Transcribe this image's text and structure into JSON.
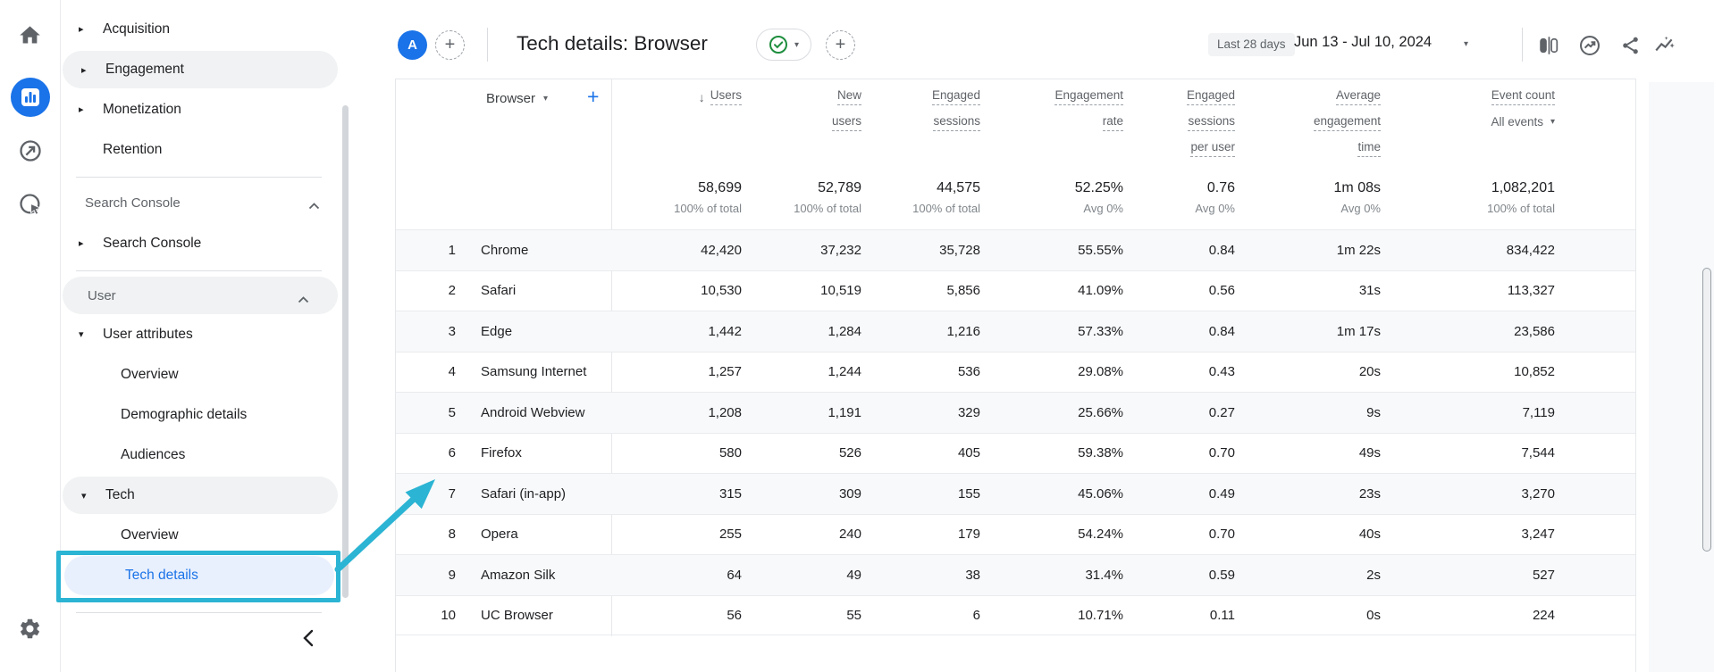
{
  "header": {
    "property_avatar": "A",
    "title": "Tech details: Browser",
    "date_preset": "Last 28 days",
    "date_range": "Jun 13 - Jul 10, 2024"
  },
  "sidebar": {
    "items": [
      {
        "label": "Acquisition"
      },
      {
        "label": "Engagement"
      },
      {
        "label": "Monetization"
      },
      {
        "label": "Retention"
      },
      {
        "label": "Search Console"
      },
      {
        "label": "Search Console"
      },
      {
        "label": "User"
      },
      {
        "label": "User attributes"
      },
      {
        "label": "Overview"
      },
      {
        "label": "Demographic details"
      },
      {
        "label": "Audiences"
      },
      {
        "label": "Tech"
      },
      {
        "label": "Overview"
      },
      {
        "label": "Tech details"
      }
    ]
  },
  "table": {
    "dimension_label": "Browser",
    "columns": [
      {
        "id": "users",
        "lines": [
          "Users"
        ],
        "sorted": true
      },
      {
        "id": "new-users",
        "lines": [
          "New",
          "users"
        ]
      },
      {
        "id": "engaged-sessions",
        "lines": [
          "Engaged",
          "sessions"
        ]
      },
      {
        "id": "engagement-rate",
        "lines": [
          "Engagement",
          "rate"
        ]
      },
      {
        "id": "engaged-sessions-per-user",
        "lines": [
          "Engaged",
          "sessions",
          "per user"
        ]
      },
      {
        "id": "average-engagement-time",
        "lines": [
          "Average",
          "engagement",
          "time"
        ]
      },
      {
        "id": "event-count",
        "lines": [
          "Event count"
        ],
        "subtitle": "All events"
      }
    ],
    "totals": {
      "values": [
        "58,699",
        "52,789",
        "44,575",
        "52.25%",
        "0.76",
        "1m 08s",
        "1,082,201"
      ],
      "captions": [
        "100% of total",
        "100% of total",
        "100% of total",
        "Avg 0%",
        "Avg 0%",
        "Avg 0%",
        "100% of total"
      ]
    },
    "rows": [
      {
        "rank": "1",
        "browser": "Chrome",
        "values": [
          "42,420",
          "37,232",
          "35,728",
          "55.55%",
          "0.84",
          "1m 22s",
          "834,422"
        ]
      },
      {
        "rank": "2",
        "browser": "Safari",
        "values": [
          "10,530",
          "10,519",
          "5,856",
          "41.09%",
          "0.56",
          "31s",
          "113,327"
        ]
      },
      {
        "rank": "3",
        "browser": "Edge",
        "values": [
          "1,442",
          "1,284",
          "1,216",
          "57.33%",
          "0.84",
          "1m 17s",
          "23,586"
        ]
      },
      {
        "rank": "4",
        "browser": "Samsung Internet",
        "values": [
          "1,257",
          "1,244",
          "536",
          "29.08%",
          "0.43",
          "20s",
          "10,852"
        ]
      },
      {
        "rank": "5",
        "browser": "Android Webview",
        "values": [
          "1,208",
          "1,191",
          "329",
          "25.66%",
          "0.27",
          "9s",
          "7,119"
        ]
      },
      {
        "rank": "6",
        "browser": "Firefox",
        "values": [
          "580",
          "526",
          "405",
          "59.38%",
          "0.70",
          "49s",
          "7,544"
        ]
      },
      {
        "rank": "7",
        "browser": "Safari (in-app)",
        "values": [
          "315",
          "309",
          "155",
          "45.06%",
          "0.49",
          "23s",
          "3,270"
        ]
      },
      {
        "rank": "8",
        "browser": "Opera",
        "values": [
          "255",
          "240",
          "179",
          "54.24%",
          "0.70",
          "40s",
          "3,247"
        ]
      },
      {
        "rank": "9",
        "browser": "Amazon Silk",
        "values": [
          "64",
          "49",
          "38",
          "31.4%",
          "0.59",
          "2s",
          "527"
        ]
      },
      {
        "rank": "10",
        "browser": "UC Browser",
        "values": [
          "56",
          "55",
          "6",
          "10.71%",
          "0.11",
          "0s",
          "224"
        ]
      }
    ]
  },
  "colors": {
    "accent_blue": "#1a73e8",
    "annotation_cyan": "#2bb4d3",
    "status_green": "#1e8e3e"
  }
}
